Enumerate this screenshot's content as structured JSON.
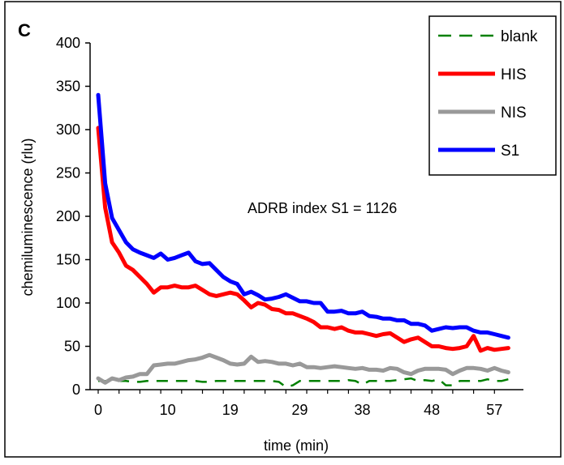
{
  "panel_label": "C",
  "chart_data": {
    "type": "line",
    "xlabel": "time (min)",
    "ylabel": "chemiluminescence (rlu)",
    "annotation": "ADRB index S1 = 1126",
    "xlim": [
      0,
      60
    ],
    "ylim": [
      0,
      400
    ],
    "x_ticks": [
      0,
      10,
      19,
      29,
      38,
      48,
      57
    ],
    "y_ticks": [
      0,
      50,
      100,
      150,
      200,
      250,
      300,
      350,
      400
    ],
    "legend_position": "top-right",
    "x": [
      0,
      1,
      2,
      3,
      4,
      5,
      6,
      7,
      8,
      9,
      10,
      11,
      12,
      13,
      14,
      15,
      16,
      17,
      18,
      19,
      20,
      21,
      22,
      23,
      24,
      25,
      26,
      27,
      28,
      29,
      30,
      31,
      32,
      33,
      34,
      35,
      36,
      37,
      38,
      39,
      40,
      41,
      42,
      43,
      44,
      45,
      46,
      47,
      48,
      49,
      50,
      51,
      52,
      53,
      54,
      55,
      56,
      57,
      58,
      59
    ],
    "series": [
      {
        "name": "blank",
        "color": "#008000",
        "dash": true,
        "values": [
          10,
          10,
          10,
          10,
          10,
          9,
          9,
          10,
          10,
          10,
          10,
          10,
          10,
          10,
          10,
          9,
          9,
          10,
          10,
          10,
          10,
          10,
          10,
          10,
          10,
          10,
          9,
          3,
          5,
          10,
          10,
          10,
          10,
          10,
          10,
          10,
          11,
          10,
          6,
          10,
          10,
          10,
          10,
          11,
          12,
          13,
          10,
          11,
          10,
          12,
          5,
          5,
          10,
          10,
          10,
          10,
          12,
          10,
          10,
          12
        ]
      },
      {
        "name": "HIS",
        "color": "#ff0000",
        "values": [
          302,
          210,
          170,
          158,
          143,
          138,
          130,
          122,
          112,
          118,
          118,
          120,
          118,
          118,
          120,
          115,
          110,
          108,
          110,
          112,
          110,
          103,
          95,
          100,
          98,
          93,
          92,
          88,
          88,
          85,
          82,
          78,
          72,
          72,
          70,
          72,
          68,
          66,
          66,
          64,
          62,
          64,
          65,
          60,
          55,
          58,
          60,
          55,
          50,
          50,
          48,
          47,
          48,
          50,
          62,
          45,
          48,
          46,
          47,
          48
        ]
      },
      {
        "name": "NIS",
        "color": "#999999",
        "values": [
          13,
          8,
          13,
          11,
          14,
          15,
          18,
          18,
          28,
          29,
          30,
          30,
          32,
          34,
          35,
          37,
          40,
          37,
          34,
          30,
          29,
          30,
          38,
          32,
          33,
          32,
          30,
          30,
          28,
          30,
          26,
          26,
          25,
          26,
          27,
          26,
          25,
          24,
          25,
          23,
          23,
          22,
          25,
          24,
          20,
          18,
          22,
          24,
          24,
          24,
          23,
          18,
          22,
          25,
          25,
          24,
          22,
          25,
          22,
          20
        ]
      },
      {
        "name": "S1",
        "color": "#0000ff",
        "values": [
          340,
          238,
          198,
          184,
          170,
          162,
          158,
          155,
          152,
          157,
          150,
          152,
          155,
          158,
          148,
          145,
          146,
          138,
          130,
          125,
          122,
          110,
          113,
          109,
          104,
          105,
          107,
          110,
          106,
          102,
          102,
          100,
          100,
          90,
          90,
          91,
          88,
          88,
          90,
          85,
          84,
          82,
          82,
          80,
          80,
          76,
          76,
          74,
          68,
          70,
          72,
          71,
          72,
          72,
          68,
          66,
          66,
          64,
          62,
          60
        ]
      }
    ]
  }
}
